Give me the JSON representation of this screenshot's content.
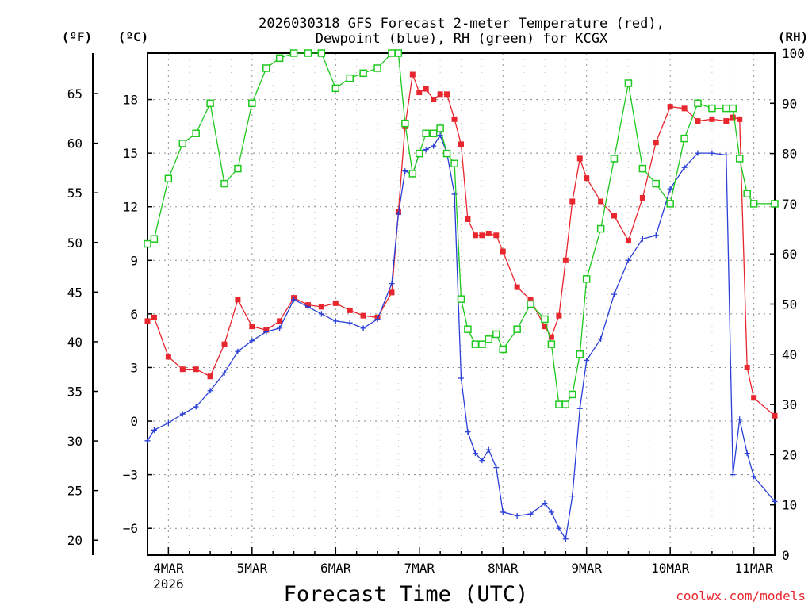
{
  "chart_data": {
    "type": "line",
    "title_line1": "2026030318 GFS Forecast 2-meter Temperature (red),",
    "title_line2": "Dewpoint (blue), RH (green) for KCGX",
    "xlabel": "Forecast Time (UTC)",
    "credit": "coolwx.com/models",
    "axis_units": {
      "fahrenheit": "(ºF)",
      "celsius": "(ºC)",
      "rh": "(RH)"
    },
    "xlim": [
      3.75,
      11.25
    ],
    "celsius_lim": [
      -7.5,
      20.6
    ],
    "rh_lim": [
      0,
      100
    ],
    "x_ticks": [
      {
        "x": 4,
        "label": "4MAR",
        "sublabel": "2026"
      },
      {
        "x": 5,
        "label": "5MAR",
        "sublabel": ""
      },
      {
        "x": 6,
        "label": "6MAR",
        "sublabel": ""
      },
      {
        "x": 7,
        "label": "7MAR",
        "sublabel": ""
      },
      {
        "x": 8,
        "label": "8MAR",
        "sublabel": ""
      },
      {
        "x": 9,
        "label": "9MAR",
        "sublabel": ""
      },
      {
        "x": 10,
        "label": "10MAR",
        "sublabel": ""
      },
      {
        "x": 11,
        "label": "11MAR",
        "sublabel": ""
      }
    ],
    "celsius_ticks": [
      {
        "v": -6,
        "label": "−6"
      },
      {
        "v": -3,
        "label": "−3"
      },
      {
        "v": 0,
        "label": "0"
      },
      {
        "v": 3,
        "label": "3"
      },
      {
        "v": 6,
        "label": "6"
      },
      {
        "v": 9,
        "label": "9"
      },
      {
        "v": 12,
        "label": "12"
      },
      {
        "v": 15,
        "label": "15"
      },
      {
        "v": 18,
        "label": "18"
      }
    ],
    "fahrenheit_ticks": [
      {
        "v": 20,
        "label": "20"
      },
      {
        "v": 25,
        "label": "25"
      },
      {
        "v": 30,
        "label": "30"
      },
      {
        "v": 35,
        "label": "35"
      },
      {
        "v": 40,
        "label": "40"
      },
      {
        "v": 45,
        "label": "45"
      },
      {
        "v": 50,
        "label": "50"
      },
      {
        "v": 55,
        "label": "55"
      },
      {
        "v": 60,
        "label": "60"
      },
      {
        "v": 65,
        "label": "65"
      }
    ],
    "rh_ticks": [
      {
        "v": 0,
        "label": "0"
      },
      {
        "v": 10,
        "label": "10"
      },
      {
        "v": 20,
        "label": "20"
      },
      {
        "v": 30,
        "label": "30"
      },
      {
        "v": 40,
        "label": "40"
      },
      {
        "v": 50,
        "label": "50"
      },
      {
        "v": 60,
        "label": "60"
      },
      {
        "v": 70,
        "label": "70"
      },
      {
        "v": 80,
        "label": "80"
      },
      {
        "v": 90,
        "label": "90"
      },
      {
        "v": 100,
        "label": "100"
      }
    ],
    "colors": {
      "temperature": "#e8262e",
      "dewpoint": "#2a3fd6",
      "rh": "#1ec81e",
      "grid": "#888888"
    },
    "series": [
      {
        "name": "Temperature",
        "axis": "celsius",
        "marker": "square",
        "x": [
          3.75,
          3.83,
          4.0,
          4.17,
          4.33,
          4.5,
          4.67,
          4.83,
          5.0,
          5.17,
          5.33,
          5.5,
          5.67,
          5.83,
          6.0,
          6.17,
          6.33,
          6.5,
          6.67,
          6.75,
          6.83,
          6.92,
          7.0,
          7.08,
          7.17,
          7.25,
          7.33,
          7.42,
          7.5,
          7.58,
          7.67,
          7.75,
          7.83,
          7.92,
          8.0,
          8.17,
          8.33,
          8.5,
          8.58,
          8.67,
          8.75,
          8.83,
          8.92,
          9.0,
          9.17,
          9.33,
          9.5,
          9.67,
          9.83,
          10.0,
          10.17,
          10.33,
          10.5,
          10.67,
          10.75,
          10.83,
          10.92,
          11.0,
          11.25
        ],
        "values": [
          5.6,
          5.8,
          3.6,
          2.9,
          2.9,
          2.5,
          4.3,
          6.8,
          5.3,
          5.1,
          5.6,
          6.9,
          6.5,
          6.4,
          6.6,
          6.2,
          5.9,
          5.8,
          7.2,
          11.7,
          16.5,
          19.4,
          18.4,
          18.6,
          18.0,
          18.3,
          18.3,
          16.9,
          15.5,
          11.3,
          10.4,
          10.4,
          10.5,
          10.4,
          9.5,
          7.5,
          6.8,
          5.3,
          4.7,
          5.9,
          9.0,
          12.3,
          14.7,
          13.6,
          12.3,
          11.5,
          10.1,
          12.5,
          15.6,
          17.6,
          17.5,
          16.8,
          16.9,
          16.8,
          17.0,
          16.9,
          3.0,
          1.3,
          0.3
        ]
      },
      {
        "name": "Dewpoint",
        "axis": "celsius",
        "marker": "plus",
        "x": [
          3.75,
          3.83,
          4.0,
          4.17,
          4.33,
          4.5,
          4.67,
          4.83,
          5.0,
          5.17,
          5.33,
          5.5,
          5.67,
          5.83,
          6.0,
          6.17,
          6.33,
          6.5,
          6.67,
          6.75,
          6.83,
          6.92,
          7.0,
          7.08,
          7.17,
          7.25,
          7.33,
          7.42,
          7.5,
          7.58,
          7.67,
          7.75,
          7.83,
          7.92,
          8.0,
          8.17,
          8.33,
          8.5,
          8.58,
          8.67,
          8.75,
          8.83,
          8.92,
          9.0,
          9.17,
          9.33,
          9.5,
          9.67,
          9.83,
          10.0,
          10.17,
          10.33,
          10.5,
          10.67,
          10.75,
          10.83,
          10.92,
          11.0,
          11.25
        ],
        "values": [
          -1.1,
          -0.5,
          -0.1,
          0.4,
          0.8,
          1.7,
          2.7,
          3.9,
          4.5,
          5.0,
          5.2,
          6.8,
          6.4,
          6.0,
          5.6,
          5.5,
          5.2,
          5.7,
          7.7,
          11.6,
          14.0,
          13.8,
          15.0,
          15.2,
          15.4,
          16.0,
          15.0,
          12.7,
          2.4,
          -0.6,
          -1.8,
          -2.2,
          -1.6,
          -2.6,
          -5.1,
          -5.3,
          -5.2,
          -4.6,
          -5.1,
          -6.0,
          -6.6,
          -4.2,
          0.7,
          3.4,
          4.6,
          7.1,
          9.0,
          10.2,
          10.4,
          13.0,
          14.2,
          15.0,
          15.0,
          14.9,
          -3.0,
          0.1,
          -1.8,
          -3.1,
          -4.5
        ]
      },
      {
        "name": "RH",
        "axis": "rh",
        "marker": "open-square",
        "x": [
          3.75,
          3.83,
          4.0,
          4.17,
          4.33,
          4.5,
          4.67,
          4.83,
          5.0,
          5.17,
          5.33,
          5.5,
          5.67,
          5.83,
          6.0,
          6.17,
          6.33,
          6.5,
          6.67,
          6.75,
          6.83,
          6.92,
          7.0,
          7.08,
          7.17,
          7.25,
          7.33,
          7.42,
          7.5,
          7.58,
          7.67,
          7.75,
          7.83,
          7.92,
          8.0,
          8.17,
          8.33,
          8.5,
          8.58,
          8.67,
          8.75,
          8.83,
          8.92,
          9.0,
          9.17,
          9.33,
          9.5,
          9.67,
          9.83,
          10.0,
          10.17,
          10.33,
          10.5,
          10.67,
          10.75,
          10.83,
          10.92,
          11.0,
          11.25
        ],
        "values": [
          62,
          63,
          75,
          82,
          84,
          90,
          74,
          77,
          90,
          97,
          99,
          100,
          100,
          100,
          93,
          95,
          96,
          97,
          100,
          100,
          86,
          76,
          80,
          84,
          84,
          85,
          80,
          78,
          51,
          45,
          42,
          42,
          43,
          44,
          41,
          45,
          50,
          47,
          42,
          30,
          30,
          32,
          40,
          55,
          65,
          79,
          94,
          77,
          74,
          70,
          83,
          90,
          89,
          89,
          89,
          79,
          72,
          70,
          70
        ]
      }
    ]
  }
}
